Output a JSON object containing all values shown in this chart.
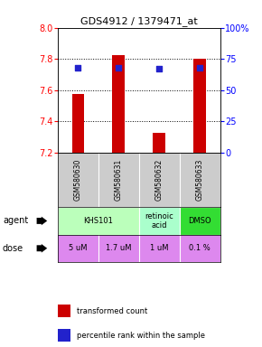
{
  "title": "GDS4912 / 1379471_at",
  "samples": [
    "GSM580630",
    "GSM580631",
    "GSM580632",
    "GSM580633"
  ],
  "bar_values": [
    7.575,
    7.825,
    7.325,
    7.8
  ],
  "bar_bottom": 7.2,
  "percentile_values": [
    68,
    68,
    67,
    68
  ],
  "ylim_left": [
    7.2,
    8.0
  ],
  "yticks_left": [
    7.2,
    7.4,
    7.6,
    7.8,
    8.0
  ],
  "yticks_right": [
    0,
    25,
    50,
    75,
    100
  ],
  "bar_color": "#cc0000",
  "dot_color": "#2222cc",
  "agent_groups": [
    {
      "start": 0,
      "end": 1,
      "label": "KHS101",
      "color": "#bbffbb"
    },
    {
      "start": 2,
      "end": 2,
      "label": "retinoic\nacid",
      "color": "#aaffcc"
    },
    {
      "start": 3,
      "end": 3,
      "label": "DMSO",
      "color": "#33dd33"
    }
  ],
  "doses": [
    "5 uM",
    "1.7 uM",
    "1 uM",
    "0.1 %"
  ],
  "dose_color": "#dd88ee",
  "sample_bg": "#cccccc",
  "grid_lines": [
    7.4,
    7.6,
    7.8
  ],
  "legend_bar_color": "#cc0000",
  "legend_dot_color": "#2222cc"
}
